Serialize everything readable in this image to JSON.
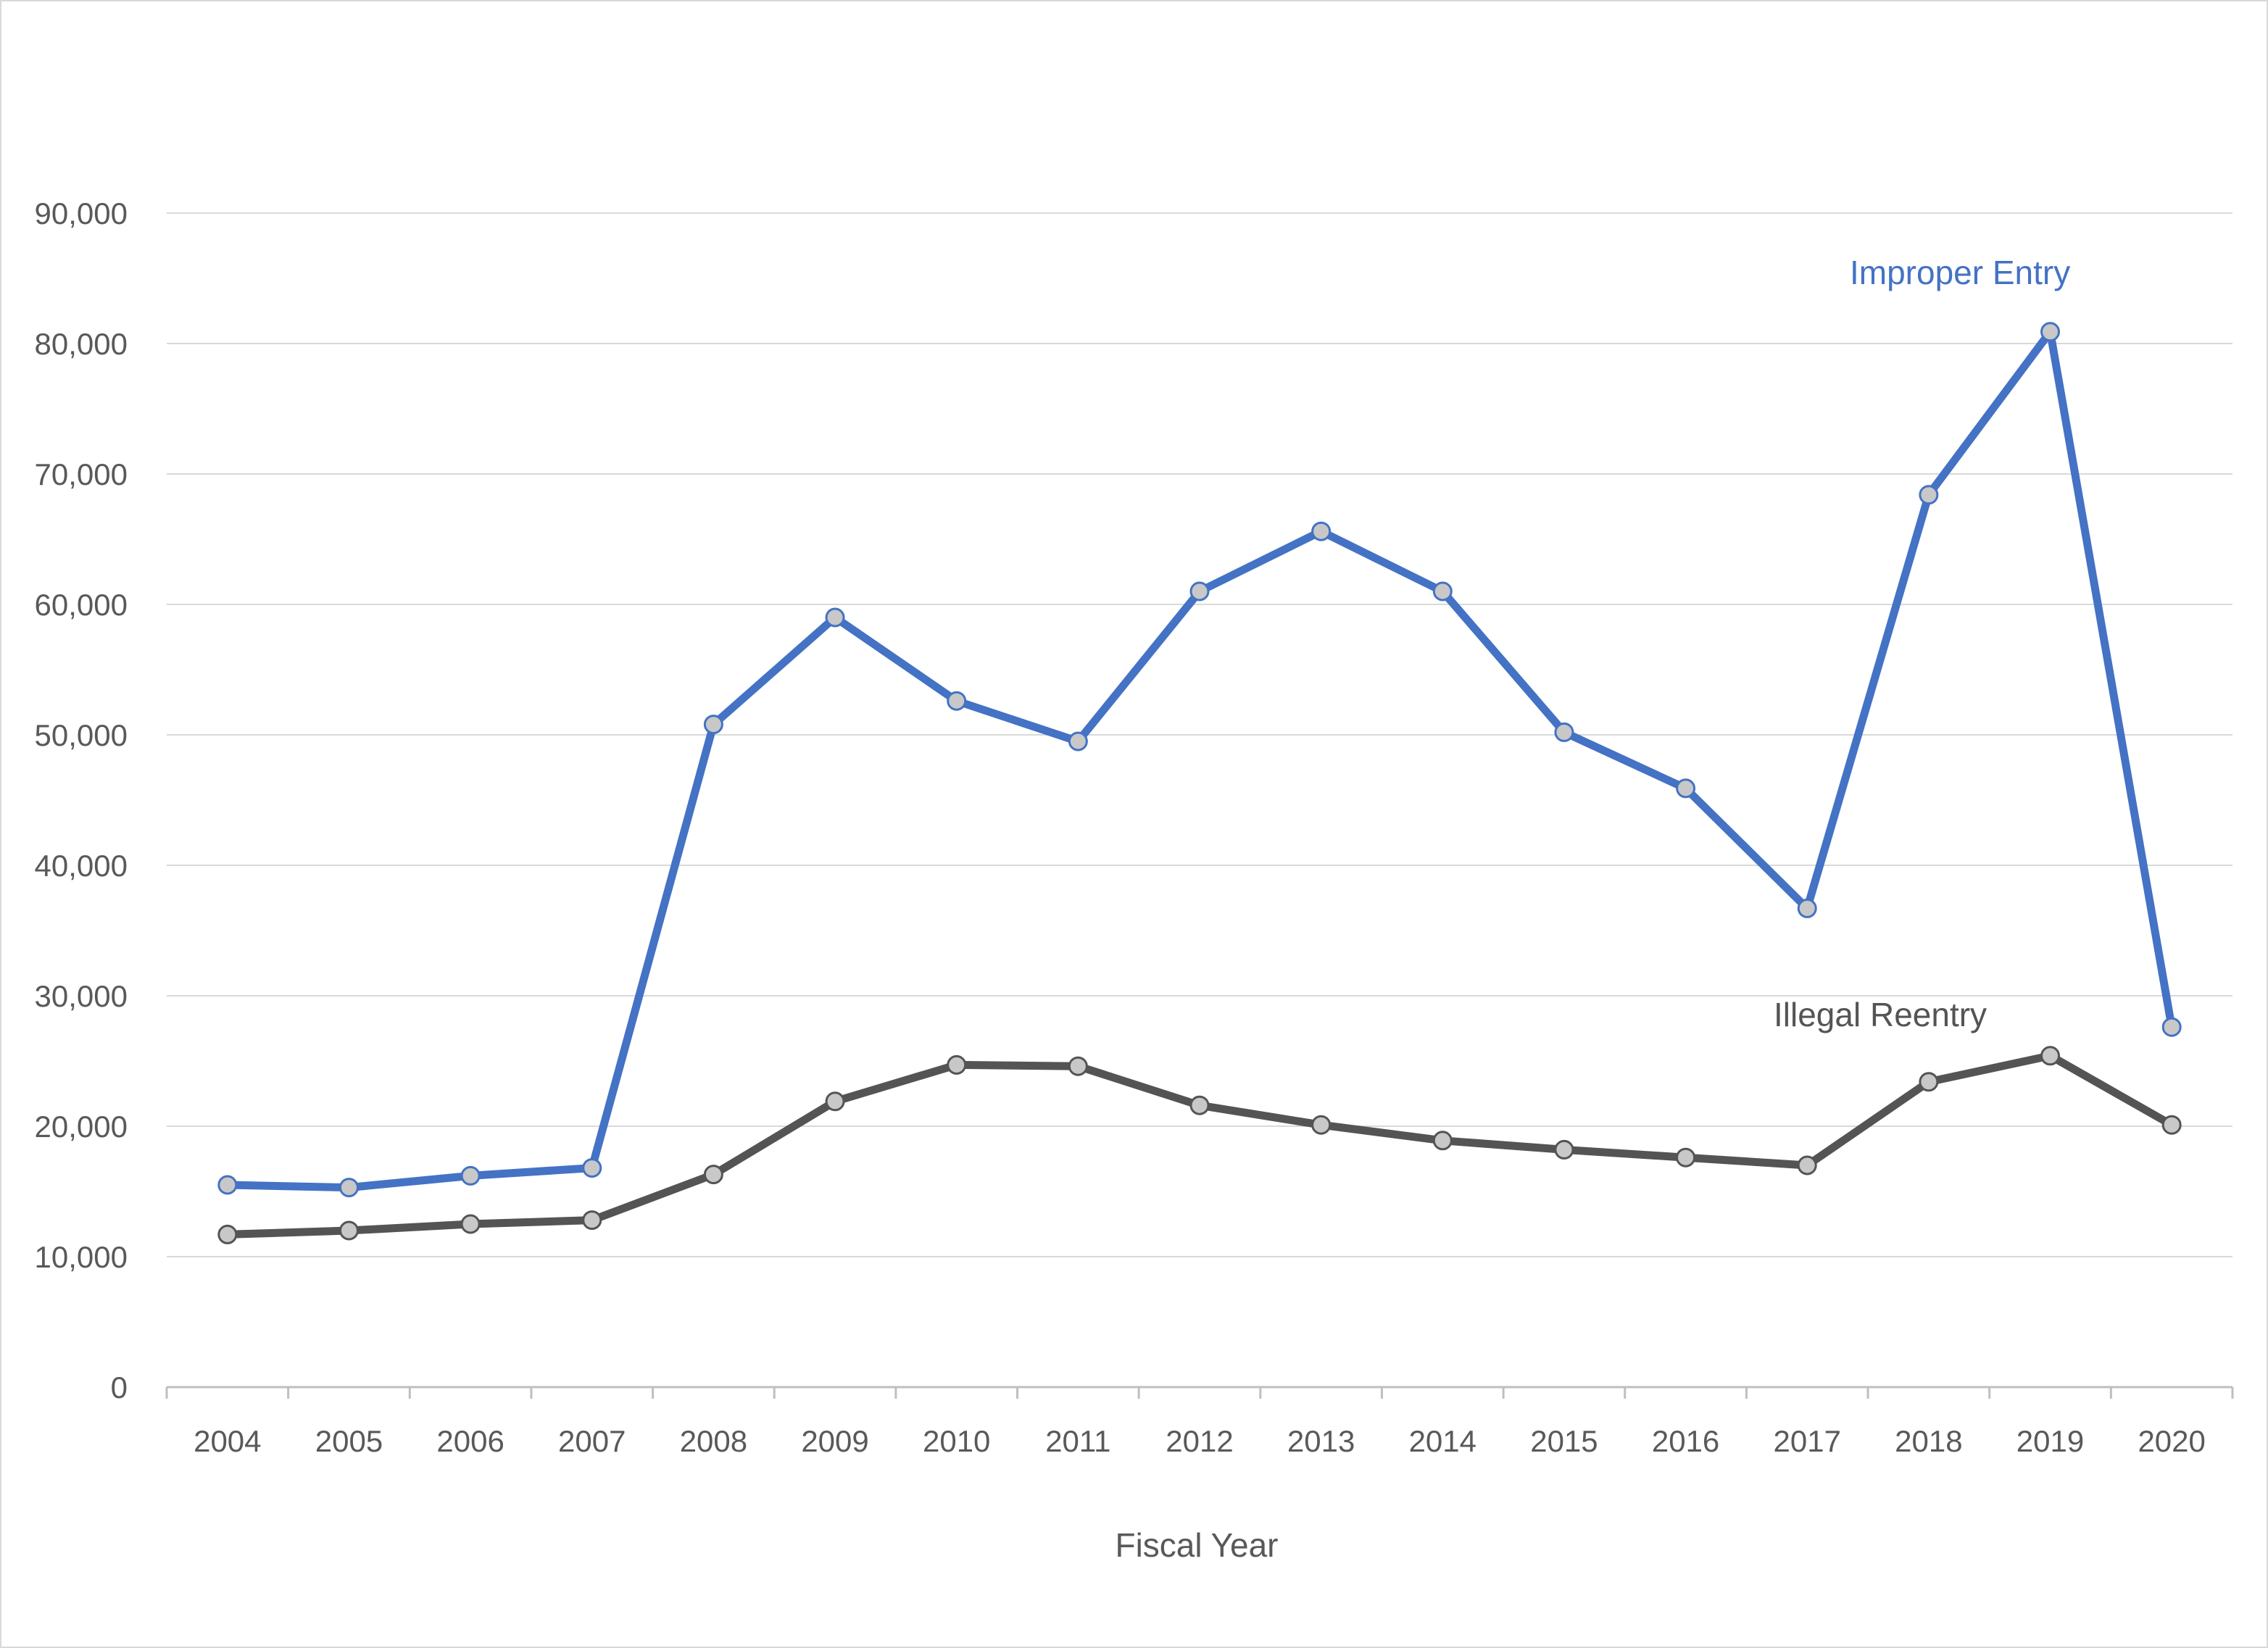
{
  "chart_data": {
    "type": "line",
    "title": "",
    "xlabel": "Fiscal Year",
    "ylabel": "",
    "categories": [
      "2004",
      "2005",
      "2006",
      "2007",
      "2008",
      "2009",
      "2010",
      "2011",
      "2012",
      "2013",
      "2014",
      "2015",
      "2016",
      "2017",
      "2018",
      "2019",
      "2020"
    ],
    "ylim": [
      0,
      90000
    ],
    "yticks": [
      0,
      10000,
      20000,
      30000,
      40000,
      50000,
      60000,
      70000,
      80000,
      90000
    ],
    "ytick_labels": [
      "0",
      "10,000",
      "20,000",
      "30,000",
      "40,000",
      "50,000",
      "60,000",
      "70,000",
      "80,000",
      "90,000"
    ],
    "grid": true,
    "legend": "none (direct labels)",
    "series": [
      {
        "name": "Improper Entry",
        "color": "#4472c4",
        "values": [
          15500,
          15300,
          16200,
          16800,
          50800,
          59000,
          52600,
          49500,
          61000,
          65600,
          61000,
          50200,
          45900,
          36700,
          68400,
          80900,
          27600
        ]
      },
      {
        "name": "Illegal Reentry",
        "color": "#545454",
        "values": [
          11700,
          12000,
          12500,
          12800,
          16300,
          21900,
          24700,
          24600,
          21600,
          20100,
          18900,
          18200,
          17600,
          17000,
          23400,
          25400,
          20100
        ]
      }
    ],
    "marker_fill": "#c8c8c8"
  }
}
